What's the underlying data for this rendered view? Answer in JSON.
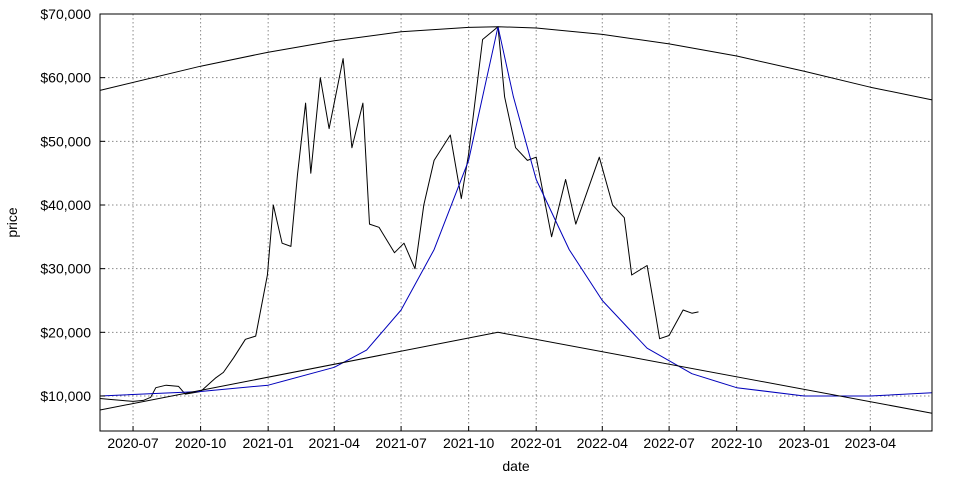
{
  "chart_data": {
    "type": "line",
    "title": "",
    "xlabel": "date",
    "ylabel": "price",
    "xlim": [
      "2020-05-17",
      "2023-06-24"
    ],
    "ylim": [
      4500,
      70000
    ],
    "grid": true,
    "x_ticks": [
      "2020-07-01",
      "2020-10-01",
      "2021-01-01",
      "2021-04-01",
      "2021-07-01",
      "2021-10-01",
      "2022-01-01",
      "2022-04-01",
      "2022-07-01",
      "2022-10-01",
      "2023-01-01",
      "2023-04-01"
    ],
    "x_tick_labels": [
      "2020-07",
      "2020-10",
      "2021-01",
      "2021-04",
      "2021-07",
      "2021-10",
      "2022-01",
      "2022-04",
      "2022-07",
      "2022-10",
      "2023-01",
      "2023-04"
    ],
    "y_ticks": [
      10000,
      20000,
      30000,
      40000,
      50000,
      60000,
      70000
    ],
    "y_tick_labels": [
      "$10,000",
      "$20,000",
      "$30,000",
      "$40,000",
      "$50,000",
      "$60,000",
      "$70,000"
    ],
    "series": [
      {
        "color": "#000000",
        "points": [
          [
            "2020-05-17",
            9600
          ],
          [
            "2020-06-01",
            9450
          ],
          [
            "2020-06-15",
            9300
          ],
          [
            "2020-07-01",
            9150
          ],
          [
            "2020-07-15",
            9300
          ],
          [
            "2020-07-25",
            9800
          ],
          [
            "2020-08-01",
            11300
          ],
          [
            "2020-08-15",
            11700
          ],
          [
            "2020-09-01",
            11500
          ],
          [
            "2020-09-10",
            10300
          ],
          [
            "2020-10-01",
            10700
          ],
          [
            "2020-10-21",
            12800
          ],
          [
            "2020-11-01",
            13700
          ],
          [
            "2020-11-15",
            16000
          ],
          [
            "2020-12-01",
            18900
          ],
          [
            "2020-12-15",
            19400
          ],
          [
            "2020-12-31",
            29000
          ],
          [
            "2021-01-08",
            40000
          ],
          [
            "2021-01-20",
            34000
          ],
          [
            "2021-02-01",
            33500
          ],
          [
            "2021-02-10",
            44800
          ],
          [
            "2021-02-21",
            56000
          ],
          [
            "2021-02-28",
            45000
          ],
          [
            "2021-03-13",
            60000
          ],
          [
            "2021-03-25",
            52000
          ],
          [
            "2021-04-13",
            63000
          ],
          [
            "2021-04-25",
            49000
          ],
          [
            "2021-05-10",
            56000
          ],
          [
            "2021-05-19",
            37000
          ],
          [
            "2021-06-01",
            36500
          ],
          [
            "2021-06-22",
            32500
          ],
          [
            "2021-07-05",
            34000
          ],
          [
            "2021-07-20",
            30000
          ],
          [
            "2021-08-01",
            40000
          ],
          [
            "2021-08-15",
            47000
          ],
          [
            "2021-09-06",
            51000
          ],
          [
            "2021-09-21",
            41000
          ],
          [
            "2021-10-01",
            48000
          ],
          [
            "2021-10-20",
            66000
          ],
          [
            "2021-11-10",
            68000
          ],
          [
            "2021-11-19",
            57000
          ],
          [
            "2021-12-04",
            49000
          ],
          [
            "2021-12-20",
            47000
          ],
          [
            "2022-01-01",
            47500
          ],
          [
            "2022-01-22",
            35000
          ],
          [
            "2022-02-10",
            44000
          ],
          [
            "2022-02-24",
            37000
          ],
          [
            "2022-03-28",
            47500
          ],
          [
            "2022-04-15",
            40000
          ],
          [
            "2022-05-01",
            38000
          ],
          [
            "2022-05-11",
            29000
          ],
          [
            "2022-06-01",
            30500
          ],
          [
            "2022-06-13",
            22500
          ],
          [
            "2022-06-18",
            19000
          ],
          [
            "2022-07-01",
            19500
          ],
          [
            "2022-07-20",
            23500
          ],
          [
            "2022-08-01",
            23000
          ],
          [
            "2022-08-10",
            23200
          ]
        ]
      },
      {
        "color": "#0000bb",
        "points": [
          [
            "2020-05-17",
            10000
          ],
          [
            "2020-10-01",
            10700
          ],
          [
            "2021-01-01",
            11700
          ],
          [
            "2021-04-01",
            14500
          ],
          [
            "2021-05-15",
            17200
          ],
          [
            "2021-07-01",
            23500
          ],
          [
            "2021-08-15",
            33000
          ],
          [
            "2021-10-01",
            47000
          ],
          [
            "2021-11-10",
            68000
          ],
          [
            "2021-12-01",
            57000
          ],
          [
            "2022-01-01",
            44000
          ],
          [
            "2022-02-15",
            33000
          ],
          [
            "2022-04-01",
            25000
          ],
          [
            "2022-06-01",
            17500
          ],
          [
            "2022-08-01",
            13500
          ],
          [
            "2022-10-01",
            11300
          ],
          [
            "2023-01-01",
            10000
          ],
          [
            "2023-04-01",
            10000
          ],
          [
            "2023-06-24",
            10500
          ]
        ]
      },
      {
        "color": "#000000",
        "points": [
          [
            "2020-05-17",
            58000
          ],
          [
            "2020-10-01",
            61800
          ],
          [
            "2021-01-01",
            64000
          ],
          [
            "2021-04-01",
            65800
          ],
          [
            "2021-07-01",
            67200
          ],
          [
            "2021-10-01",
            67900
          ],
          [
            "2021-11-10",
            68000
          ],
          [
            "2022-01-01",
            67800
          ],
          [
            "2022-04-01",
            66800
          ],
          [
            "2022-07-01",
            65300
          ],
          [
            "2022-10-01",
            63400
          ],
          [
            "2023-01-01",
            61000
          ],
          [
            "2023-04-01",
            58500
          ],
          [
            "2023-06-24",
            56500
          ]
        ]
      },
      {
        "color": "#000000",
        "points": [
          [
            "2020-05-17",
            7800
          ],
          [
            "2021-11-10",
            20000
          ],
          [
            "2023-06-24",
            7300
          ]
        ]
      }
    ]
  }
}
